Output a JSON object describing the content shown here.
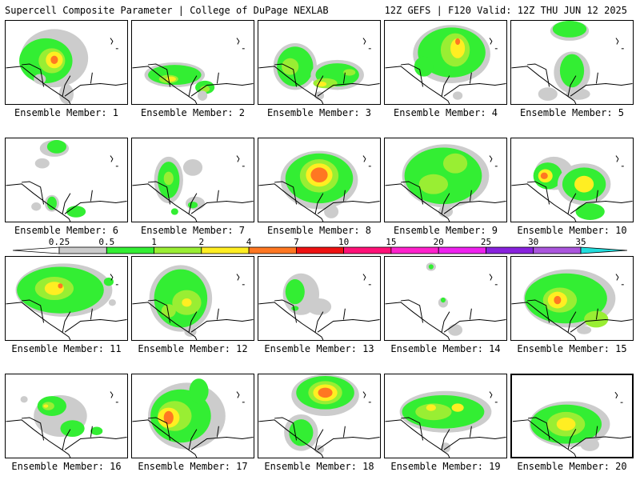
{
  "header": {
    "left": "Supercell Composite Parameter | College of DuPage NEXLAB",
    "right": "12Z GEFS | F120 Valid: 12Z THU JUN 12 2025"
  },
  "colors": {
    "lt": "#cccccc",
    "g1": "#33ee33",
    "g2": "#99ee33",
    "y": "#ffee22",
    "o": "#ff7722",
    "r": "#ee1111",
    "coast": "#000000",
    "frame": "#000000"
  },
  "colorbar": {
    "bins": [
      {
        "label": "0.25",
        "color": "#ffffff"
      },
      {
        "label": "0.5",
        "color": "#cccccc"
      },
      {
        "label": "1",
        "color": "#33ee33"
      },
      {
        "label": "2",
        "color": "#99ee33"
      },
      {
        "label": "4",
        "color": "#ffee22"
      },
      {
        "label": "7",
        "color": "#ff7722"
      },
      {
        "label": "10",
        "color": "#ee1111"
      },
      {
        "label": "15",
        "color": "#ff1177"
      },
      {
        "label": "20",
        "color": "#ff22cc"
      },
      {
        "label": "25",
        "color": "#ee22ee"
      },
      {
        "label": "30",
        "color": "#8822dd"
      },
      {
        "label": "35",
        "color": "#aa55dd"
      },
      {
        "label": "",
        "color": "#22dddd"
      }
    ]
  },
  "members": [
    {
      "label": "Ensemble Member: 1",
      "selected": false,
      "blobs": [
        [
          0.4,
          0.45,
          0.28,
          0.35,
          "lt"
        ],
        [
          0.33,
          0.48,
          0.22,
          0.27,
          "g1"
        ],
        [
          0.38,
          0.48,
          0.11,
          0.15,
          "g2"
        ],
        [
          0.4,
          0.47,
          0.07,
          0.1,
          "y"
        ],
        [
          0.4,
          0.47,
          0.03,
          0.05,
          "o"
        ],
        [
          0.5,
          0.88,
          0.06,
          0.12,
          "lt"
        ],
        [
          0.28,
          0.7,
          0.05,
          0.06,
          "lt"
        ]
      ]
    },
    {
      "label": "Ensemble Member: 2",
      "selected": false,
      "blobs": [
        [
          0.35,
          0.65,
          0.25,
          0.15,
          "lt"
        ],
        [
          0.35,
          0.65,
          0.22,
          0.12,
          "g1"
        ],
        [
          0.3,
          0.7,
          0.08,
          0.05,
          "g2"
        ],
        [
          0.32,
          0.7,
          0.04,
          0.03,
          "y"
        ],
        [
          0.6,
          0.8,
          0.08,
          0.08,
          "g1"
        ],
        [
          0.6,
          0.82,
          0.04,
          0.04,
          "g2"
        ],
        [
          0.58,
          0.9,
          0.04,
          0.06,
          "lt"
        ]
      ]
    },
    {
      "label": "Ensemble Member: 3",
      "selected": false,
      "blobs": [
        [
          0.3,
          0.55,
          0.18,
          0.28,
          "lt"
        ],
        [
          0.3,
          0.55,
          0.15,
          0.24,
          "g1"
        ],
        [
          0.26,
          0.55,
          0.07,
          0.1,
          "g2"
        ],
        [
          0.65,
          0.65,
          0.22,
          0.18,
          "lt"
        ],
        [
          0.65,
          0.65,
          0.18,
          0.14,
          "g1"
        ],
        [
          0.55,
          0.75,
          0.1,
          0.06,
          "g2"
        ],
        [
          0.52,
          0.76,
          0.04,
          0.03,
          "y"
        ],
        [
          0.75,
          0.62,
          0.05,
          0.04,
          "g2"
        ],
        [
          0.5,
          0.9,
          0.04,
          0.05,
          "lt"
        ]
      ]
    },
    {
      "label": "Ensemble Member: 4",
      "selected": false,
      "blobs": [
        [
          0.55,
          0.4,
          0.32,
          0.35,
          "lt"
        ],
        [
          0.55,
          0.38,
          0.28,
          0.3,
          "g1"
        ],
        [
          0.58,
          0.35,
          0.12,
          0.2,
          "g2"
        ],
        [
          0.6,
          0.33,
          0.06,
          0.12,
          "y"
        ],
        [
          0.6,
          0.25,
          0.02,
          0.04,
          "o"
        ],
        [
          0.32,
          0.55,
          0.08,
          0.12,
          "g1"
        ],
        [
          0.6,
          0.9,
          0.04,
          0.05,
          "lt"
        ]
      ]
    },
    {
      "label": "Ensemble Member: 5",
      "selected": false,
      "blobs": [
        [
          0.48,
          0.12,
          0.16,
          0.12,
          "lt"
        ],
        [
          0.48,
          0.1,
          0.14,
          0.1,
          "g1"
        ],
        [
          0.5,
          0.62,
          0.15,
          0.25,
          "lt"
        ],
        [
          0.5,
          0.6,
          0.1,
          0.2,
          "g1"
        ],
        [
          0.3,
          0.88,
          0.08,
          0.08,
          "lt"
        ],
        [
          0.55,
          0.88,
          0.1,
          0.07,
          "lt"
        ]
      ]
    },
    {
      "label": "Ensemble Member: 6",
      "selected": false,
      "blobs": [
        [
          0.4,
          0.12,
          0.12,
          0.1,
          "lt"
        ],
        [
          0.42,
          0.1,
          0.08,
          0.08,
          "g1"
        ],
        [
          0.3,
          0.3,
          0.06,
          0.06,
          "lt"
        ],
        [
          0.38,
          0.78,
          0.06,
          0.1,
          "lt"
        ],
        [
          0.38,
          0.78,
          0.04,
          0.08,
          "g1"
        ],
        [
          0.58,
          0.88,
          0.08,
          0.07,
          "g1"
        ],
        [
          0.25,
          0.82,
          0.04,
          0.05,
          "lt"
        ]
      ]
    },
    {
      "label": "Ensemble Member: 7",
      "selected": false,
      "blobs": [
        [
          0.3,
          0.5,
          0.12,
          0.28,
          "lt"
        ],
        [
          0.3,
          0.5,
          0.09,
          0.22,
          "g1"
        ],
        [
          0.3,
          0.48,
          0.04,
          0.08,
          "g2"
        ],
        [
          0.5,
          0.35,
          0.08,
          0.1,
          "lt"
        ],
        [
          0.52,
          0.78,
          0.08,
          0.08,
          "lt"
        ],
        [
          0.5,
          0.8,
          0.04,
          0.04,
          "g1"
        ],
        [
          0.35,
          0.88,
          0.03,
          0.04,
          "g1"
        ]
      ]
    },
    {
      "label": "Ensemble Member: 8",
      "selected": false,
      "blobs": [
        [
          0.5,
          0.5,
          0.32,
          0.35,
          "lt"
        ],
        [
          0.5,
          0.48,
          0.28,
          0.3,
          "g1"
        ],
        [
          0.5,
          0.45,
          0.16,
          0.2,
          "g2"
        ],
        [
          0.5,
          0.44,
          0.11,
          0.14,
          "y"
        ],
        [
          0.5,
          0.44,
          0.07,
          0.09,
          "o"
        ],
        [
          0.6,
          0.88,
          0.06,
          0.08,
          "lt"
        ]
      ]
    },
    {
      "label": "Ensemble Member: 9",
      "selected": false,
      "blobs": [
        [
          0.5,
          0.45,
          0.36,
          0.38,
          "lt"
        ],
        [
          0.48,
          0.45,
          0.32,
          0.34,
          "g1"
        ],
        [
          0.4,
          0.55,
          0.12,
          0.12,
          "g2"
        ],
        [
          0.58,
          0.3,
          0.1,
          0.12,
          "g2"
        ],
        [
          0.5,
          0.88,
          0.06,
          0.07,
          "lt"
        ]
      ]
    },
    {
      "label": "Ensemble Member: 10",
      "selected": false,
      "blobs": [
        [
          0.35,
          0.42,
          0.16,
          0.2,
          "lt"
        ],
        [
          0.3,
          0.45,
          0.12,
          0.16,
          "g1"
        ],
        [
          0.28,
          0.45,
          0.06,
          0.08,
          "y"
        ],
        [
          0.27,
          0.45,
          0.03,
          0.04,
          "o"
        ],
        [
          0.6,
          0.55,
          0.22,
          0.25,
          "lt"
        ],
        [
          0.6,
          0.55,
          0.18,
          0.2,
          "g1"
        ],
        [
          0.6,
          0.55,
          0.08,
          0.1,
          "y"
        ],
        [
          0.65,
          0.88,
          0.12,
          0.1,
          "g1"
        ]
      ]
    },
    {
      "label": "Ensemble Member: 11",
      "selected": false,
      "blobs": [
        [
          0.48,
          0.4,
          0.4,
          0.32,
          "lt"
        ],
        [
          0.45,
          0.4,
          0.36,
          0.28,
          "g1"
        ],
        [
          0.4,
          0.38,
          0.16,
          0.14,
          "g2"
        ],
        [
          0.4,
          0.38,
          0.08,
          0.08,
          "y"
        ],
        [
          0.45,
          0.35,
          0.02,
          0.03,
          "o"
        ],
        [
          0.88,
          0.55,
          0.03,
          0.04,
          "lt"
        ],
        [
          0.85,
          0.3,
          0.04,
          0.05,
          "g1"
        ]
      ]
    },
    {
      "label": "Ensemble Member: 12",
      "selected": false,
      "blobs": [
        [
          0.4,
          0.5,
          0.26,
          0.4,
          "lt"
        ],
        [
          0.4,
          0.5,
          0.22,
          0.35,
          "g1"
        ],
        [
          0.45,
          0.55,
          0.12,
          0.15,
          "g2"
        ],
        [
          0.45,
          0.55,
          0.04,
          0.05,
          "y"
        ],
        [
          0.3,
          0.65,
          0.06,
          0.08,
          "g2"
        ],
        [
          0.48,
          0.9,
          0.05,
          0.06,
          "lt"
        ]
      ]
    },
    {
      "label": "Ensemble Member: 13",
      "selected": false,
      "blobs": [
        [
          0.35,
          0.45,
          0.15,
          0.25,
          "lt"
        ],
        [
          0.3,
          0.42,
          0.08,
          0.15,
          "g1"
        ],
        [
          0.5,
          0.6,
          0.1,
          0.1,
          "lt"
        ],
        [
          0.3,
          0.62,
          0.03,
          0.03,
          "g1"
        ]
      ]
    },
    {
      "label": "Ensemble Member: 14",
      "selected": false,
      "blobs": [
        [
          0.38,
          0.12,
          0.04,
          0.05,
          "lt"
        ],
        [
          0.38,
          0.12,
          0.02,
          0.03,
          "g1"
        ],
        [
          0.48,
          0.55,
          0.04,
          0.06,
          "lt"
        ],
        [
          0.48,
          0.52,
          0.02,
          0.03,
          "g1"
        ],
        [
          0.58,
          0.88,
          0.06,
          0.07,
          "lt"
        ]
      ]
    },
    {
      "label": "Ensemble Member: 15",
      "selected": false,
      "blobs": [
        [
          0.48,
          0.5,
          0.38,
          0.35,
          "lt"
        ],
        [
          0.45,
          0.5,
          0.34,
          0.3,
          "g1"
        ],
        [
          0.4,
          0.52,
          0.14,
          0.15,
          "g2"
        ],
        [
          0.38,
          0.52,
          0.08,
          0.1,
          "y"
        ],
        [
          0.38,
          0.52,
          0.03,
          0.05,
          "o"
        ],
        [
          0.7,
          0.75,
          0.1,
          0.1,
          "g2"
        ],
        [
          0.6,
          0.88,
          0.06,
          0.05,
          "lt"
        ]
      ]
    },
    {
      "label": "Ensemble Member: 16",
      "selected": false,
      "blobs": [
        [
          0.45,
          0.5,
          0.22,
          0.25,
          "lt"
        ],
        [
          0.38,
          0.38,
          0.12,
          0.12,
          "g1"
        ],
        [
          0.35,
          0.38,
          0.05,
          0.05,
          "g2"
        ],
        [
          0.33,
          0.38,
          0.02,
          0.02,
          "y"
        ],
        [
          0.55,
          0.65,
          0.1,
          0.1,
          "g1"
        ],
        [
          0.75,
          0.68,
          0.05,
          0.05,
          "g1"
        ],
        [
          0.15,
          0.3,
          0.03,
          0.04,
          "lt"
        ]
      ]
    },
    {
      "label": "Ensemble Member: 17",
      "selected": false,
      "blobs": [
        [
          0.45,
          0.5,
          0.32,
          0.4,
          "lt"
        ],
        [
          0.4,
          0.5,
          0.25,
          0.32,
          "g1"
        ],
        [
          0.35,
          0.5,
          0.14,
          0.18,
          "g2"
        ],
        [
          0.3,
          0.52,
          0.09,
          0.12,
          "y"
        ],
        [
          0.3,
          0.52,
          0.04,
          0.08,
          "o"
        ],
        [
          0.55,
          0.2,
          0.08,
          0.15,
          "g1"
        ]
      ]
    },
    {
      "label": "Ensemble Member: 18",
      "selected": false,
      "blobs": [
        [
          0.55,
          0.25,
          0.28,
          0.25,
          "lt"
        ],
        [
          0.55,
          0.22,
          0.24,
          0.2,
          "g1"
        ],
        [
          0.55,
          0.22,
          0.14,
          0.14,
          "g2"
        ],
        [
          0.55,
          0.22,
          0.1,
          0.1,
          "y"
        ],
        [
          0.55,
          0.22,
          0.06,
          0.06,
          "o"
        ],
        [
          0.35,
          0.7,
          0.14,
          0.22,
          "lt"
        ],
        [
          0.35,
          0.7,
          0.1,
          0.16,
          "g1"
        ],
        [
          0.5,
          0.9,
          0.04,
          0.05,
          "lt"
        ]
      ]
    },
    {
      "label": "Ensemble Member: 19",
      "selected": false,
      "blobs": [
        [
          0.5,
          0.45,
          0.38,
          0.25,
          "lt"
        ],
        [
          0.48,
          0.45,
          0.34,
          0.2,
          "g1"
        ],
        [
          0.4,
          0.45,
          0.15,
          0.1,
          "g2"
        ],
        [
          0.38,
          0.4,
          0.04,
          0.04,
          "y"
        ],
        [
          0.6,
          0.4,
          0.05,
          0.05,
          "y"
        ],
        [
          0.5,
          0.88,
          0.04,
          0.06,
          "lt"
        ]
      ]
    },
    {
      "label": "Ensemble Member: 20",
      "selected": true,
      "blobs": [
        [
          0.48,
          0.6,
          0.34,
          0.28,
          "lt"
        ],
        [
          0.45,
          0.6,
          0.3,
          0.24,
          "g1"
        ],
        [
          0.45,
          0.6,
          0.16,
          0.15,
          "g2"
        ],
        [
          0.45,
          0.6,
          0.08,
          0.08,
          "y"
        ],
        [
          0.65,
          0.85,
          0.08,
          0.08,
          "lt"
        ]
      ]
    }
  ]
}
